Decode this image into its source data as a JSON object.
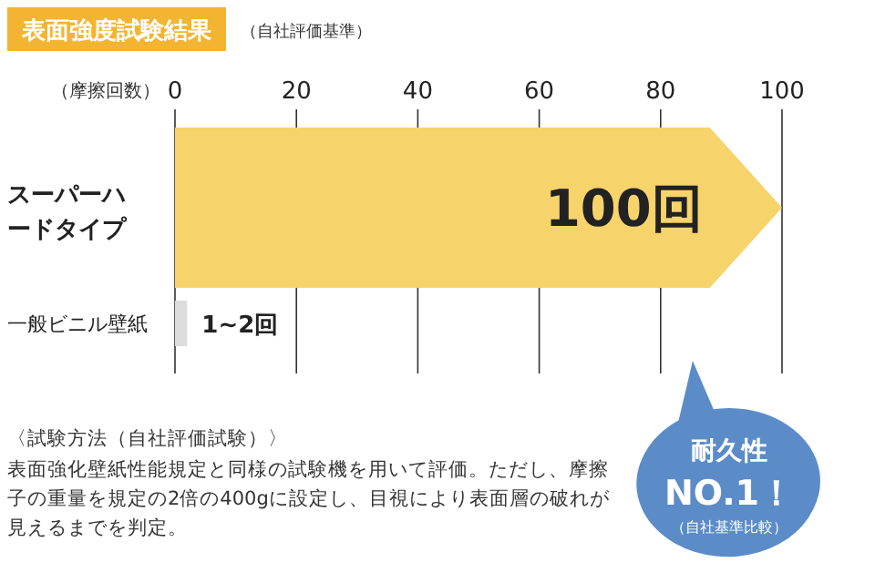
{
  "chart_data": {
    "type": "bar",
    "orientation": "horizontal",
    "title": "表面強度試験結果",
    "subtitle": "（自社評価基準）",
    "xlabel": "（摩擦回数）",
    "categories": [
      "スーパーハードタイプ",
      "一般ビニル壁紙"
    ],
    "values": [
      100,
      2
    ],
    "colors": [
      "#f7d36b",
      "#dcdcdc"
    ],
    "value_labels": [
      "100回",
      "1~2回"
    ],
    "xlim": [
      0,
      100
    ],
    "xticks": [
      0,
      20,
      40,
      60,
      80,
      100
    ],
    "grid": "x",
    "annotations": [
      "耐久性",
      "NO.1！",
      "（自社基準比較）",
      "〈試験方法（自社評価試験）〉",
      "表面強化壁紙性能規定と同様の試験機を用いて評価。ただし、摩擦子の重量を規定の2倍の400gに設定し、目視により表面層の破れが見えるまでを判定。"
    ]
  }
}
